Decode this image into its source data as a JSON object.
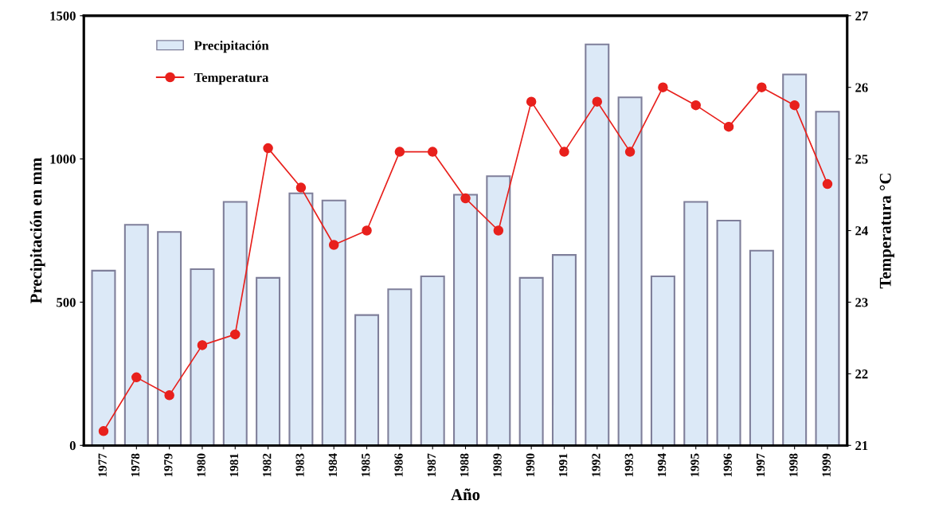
{
  "chart_data": {
    "type": "bar",
    "xlabel": "Año",
    "ylabel": "Precipitación en mm",
    "y2label": "Temperatura °C",
    "categories": [
      "1977",
      "1978",
      "1979",
      "1980",
      "1981",
      "1982",
      "1983",
      "1984",
      "1985",
      "1986",
      "1987",
      "1988",
      "1989",
      "1990",
      "1991",
      "1992",
      "1993",
      "1994",
      "1995",
      "1996",
      "1997",
      "1998",
      "1999"
    ],
    "series": [
      {
        "name": "Precipitación",
        "color": "#dce9f7",
        "values": [
          610,
          770,
          745,
          615,
          850,
          585,
          880,
          855,
          455,
          545,
          590,
          875,
          940,
          585,
          665,
          1400,
          1215,
          590,
          850,
          785,
          680,
          1295,
          1165
        ]
      },
      {
        "name": "Temperatura",
        "type": "line",
        "axis": "y2",
        "color": "#e8201c",
        "marker": "circle",
        "values": [
          21.2,
          21.95,
          21.7,
          22.4,
          22.55,
          25.15,
          24.6,
          23.8,
          24.0,
          25.1,
          25.1,
          24.45,
          24.0,
          25.8,
          25.1,
          25.8,
          25.1,
          26.0,
          25.75,
          25.45,
          26.0,
          25.75,
          24.65
        ]
      }
    ],
    "ylim": [
      0,
      1500
    ],
    "yticks": [
      0,
      500,
      1000,
      1500
    ],
    "y2lim": [
      21,
      27
    ],
    "y2ticks": [
      21,
      22,
      23,
      24,
      25,
      26,
      27
    ],
    "legend": "top left",
    "grid": false
  }
}
